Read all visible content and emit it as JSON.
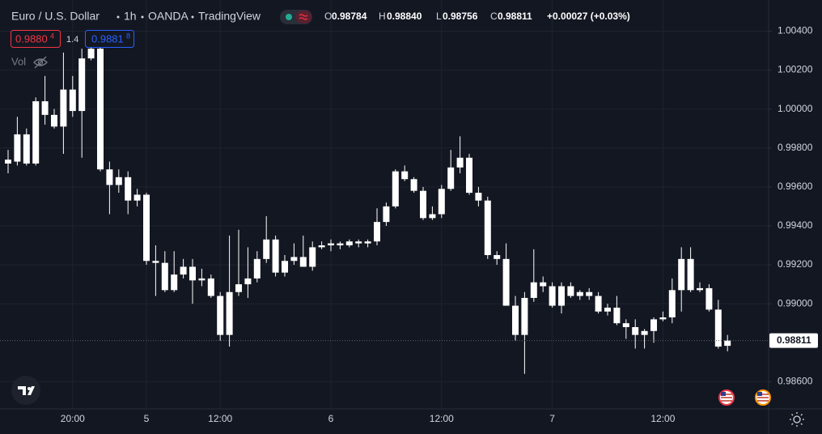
{
  "header": {
    "symbol": "Euro / U.S. Dollar",
    "interval": "1h",
    "exchange": "OANDA",
    "source": "TradingView"
  },
  "ohlc": {
    "o_key": "O",
    "o": "0.98784",
    "h_key": "H",
    "h": "0.98840",
    "l_key": "L",
    "l": "0.98756",
    "c_key": "C",
    "c": "0.98811",
    "change": "+0.00027 (+0.03%)"
  },
  "trade": {
    "sell_price": "0.9880",
    "sell_pip": "4",
    "spread": "1.4",
    "buy_price": "0.9881",
    "buy_pip": "8"
  },
  "indicator": {
    "name": "Vol"
  },
  "chart_data": {
    "type": "candlestick",
    "color": "#ffffff",
    "grid": true,
    "categories": [
      null,
      null,
      null,
      null,
      null,
      null,
      null,
      "20:00",
      null,
      null,
      null,
      null,
      null,
      null,
      null,
      "5",
      null,
      null,
      null,
      null,
      null,
      null,
      null,
      "12:00",
      null,
      null,
      null,
      null,
      null,
      null,
      null,
      null,
      null,
      null,
      null,
      "6",
      null,
      null,
      null,
      null,
      null,
      null,
      null,
      null,
      null,
      null,
      null,
      "12:00",
      null,
      null,
      null,
      null,
      null,
      null,
      null,
      null,
      null,
      null,
      null,
      "7",
      null,
      null,
      null,
      null,
      null,
      null,
      null,
      null,
      null,
      null,
      null,
      "12:00",
      null,
      null,
      null,
      null,
      null,
      null,
      null
    ],
    "open": [
      0.9972,
      0.9973,
      0.9987,
      0.9972,
      1.0004,
      0.9997,
      0.9991,
      1.001,
      0.9999,
      1.0026,
      1.0031,
      0.9969,
      0.9961,
      0.9965,
      0.9953,
      0.9956,
      0.9922,
      0.9921,
      0.9907,
      0.9915,
      0.9919,
      0.9912,
      0.9913,
      0.9904,
      0.9884,
      0.9906,
      0.991,
      0.9913,
      0.9923,
      0.9933,
      0.9916,
      0.9922,
      0.9924,
      0.9919,
      0.9929,
      0.993,
      0.9931,
      0.993,
      0.9932,
      0.9931,
      0.9932,
      0.9942,
      0.995,
      0.9968,
      0.9964,
      0.9958,
      0.9944,
      0.9946,
      0.9959,
      0.997,
      0.9975,
      0.9957,
      0.9953,
      0.9925,
      0.9923,
      0.9899,
      0.9884,
      0.9903,
      0.9911,
      0.9909,
      0.9899,
      0.9909,
      0.9904,
      0.9906,
      0.9904,
      0.9896,
      0.9898,
      0.989,
      0.9888,
      0.9884,
      0.9886,
      0.9892,
      0.9893,
      0.9907,
      0.9923,
      0.9907,
      0.9908,
      0.9897,
      0.98784
    ],
    "high": [
      0.9979,
      0.9996,
      0.999,
      1.0006,
      1.0017,
      1.0,
      1.0029,
      1.0017,
      1.0031,
      1.0034,
      1.0033,
      0.9973,
      0.9969,
      0.9968,
      0.9959,
      0.9957,
      0.993,
      0.9927,
      0.9927,
      0.9923,
      0.9923,
      0.9918,
      0.9915,
      0.9906,
      0.9935,
      0.9938,
      0.9929,
      0.9927,
      0.9945,
      0.9935,
      0.9925,
      0.9931,
      0.9935,
      0.9932,
      0.9932,
      0.9933,
      0.9932,
      0.9933,
      0.9933,
      0.9933,
      0.9949,
      0.9952,
      0.9969,
      0.9971,
      0.9965,
      0.996,
      0.995,
      0.9961,
      0.9979,
      0.9986,
      0.9977,
      0.996,
      0.9955,
      0.9927,
      0.9931,
      0.9904,
      0.9906,
      0.9928,
      0.9914,
      0.9911,
      0.9911,
      0.9911,
      0.9907,
      0.9908,
      0.9906,
      0.99,
      0.9904,
      0.9892,
      0.9892,
      0.9887,
      0.9893,
      0.9896,
      0.9913,
      0.9929,
      0.9929,
      0.9911,
      0.991,
      0.9902,
      0.9884
    ],
    "low": [
      0.9967,
      0.9971,
      0.9971,
      0.9971,
      0.9992,
      0.999,
      0.9977,
      0.9996,
      0.9975,
      1.0025,
      0.9968,
      0.9946,
      0.9957,
      0.9946,
      0.995,
      0.992,
      0.9904,
      0.9906,
      0.9906,
      0.9913,
      0.99,
      0.9909,
      0.9903,
      0.9881,
      0.9878,
      0.9904,
      0.9903,
      0.9911,
      0.9921,
      0.9914,
      0.9914,
      0.992,
      0.9919,
      0.9917,
      0.9928,
      0.9927,
      0.9928,
      0.9929,
      0.9929,
      0.9929,
      0.993,
      0.994,
      0.9949,
      0.9963,
      0.9957,
      0.9943,
      0.9943,
      0.9944,
      0.9958,
      0.9967,
      0.9956,
      0.995,
      0.9923,
      0.992,
      0.9899,
      0.9881,
      0.9864,
      0.9901,
      0.9906,
      0.9898,
      0.9895,
      0.9903,
      0.9902,
      0.9902,
      0.9895,
      0.9894,
      0.9889,
      0.9882,
      0.9877,
      0.9877,
      0.988,
      0.9891,
      0.989,
      0.9896,
      0.9906,
      0.9906,
      0.9896,
      0.9877,
      0.98756
    ],
    "close": [
      0.9974,
      0.9987,
      0.9972,
      1.0004,
      0.9997,
      0.9991,
      1.001,
      0.9999,
      1.0026,
      1.0031,
      0.9969,
      0.9961,
      0.9965,
      0.9953,
      0.9956,
      0.9922,
      0.9921,
      0.9907,
      0.9915,
      0.9919,
      0.9912,
      0.9913,
      0.9904,
      0.9884,
      0.9906,
      0.991,
      0.9913,
      0.9923,
      0.9933,
      0.9916,
      0.9922,
      0.9924,
      0.9919,
      0.9929,
      0.993,
      0.9931,
      0.993,
      0.9932,
      0.9931,
      0.9932,
      0.9942,
      0.995,
      0.9968,
      0.9964,
      0.9958,
      0.9944,
      0.9946,
      0.9959,
      0.997,
      0.9975,
      0.9957,
      0.9953,
      0.9925,
      0.9923,
      0.9899,
      0.9884,
      0.9903,
      0.9911,
      0.9909,
      0.9899,
      0.9909,
      0.9904,
      0.9906,
      0.9904,
      0.9896,
      0.9898,
      0.989,
      0.9888,
      0.9884,
      0.9886,
      0.9892,
      0.9893,
      0.9907,
      0.9923,
      0.9907,
      0.9908,
      0.9897,
      0.9878,
      0.98811
    ],
    "ylim": [
      0.9846,
      1.0056
    ],
    "yticks": [
      {
        "value": 1.004,
        "label": "1.00400"
      },
      {
        "value": 1.002,
        "label": "1.00200"
      },
      {
        "value": 1.0,
        "label": "1.00000"
      },
      {
        "value": 0.998,
        "label": "0.99800"
      },
      {
        "value": 0.996,
        "label": "0.99600"
      },
      {
        "value": 0.994,
        "label": "0.99400"
      },
      {
        "value": 0.992,
        "label": "0.99200"
      },
      {
        "value": 0.99,
        "label": "0.99000"
      },
      {
        "value": 0.986,
        "label": "0.98600"
      }
    ]
  }
}
